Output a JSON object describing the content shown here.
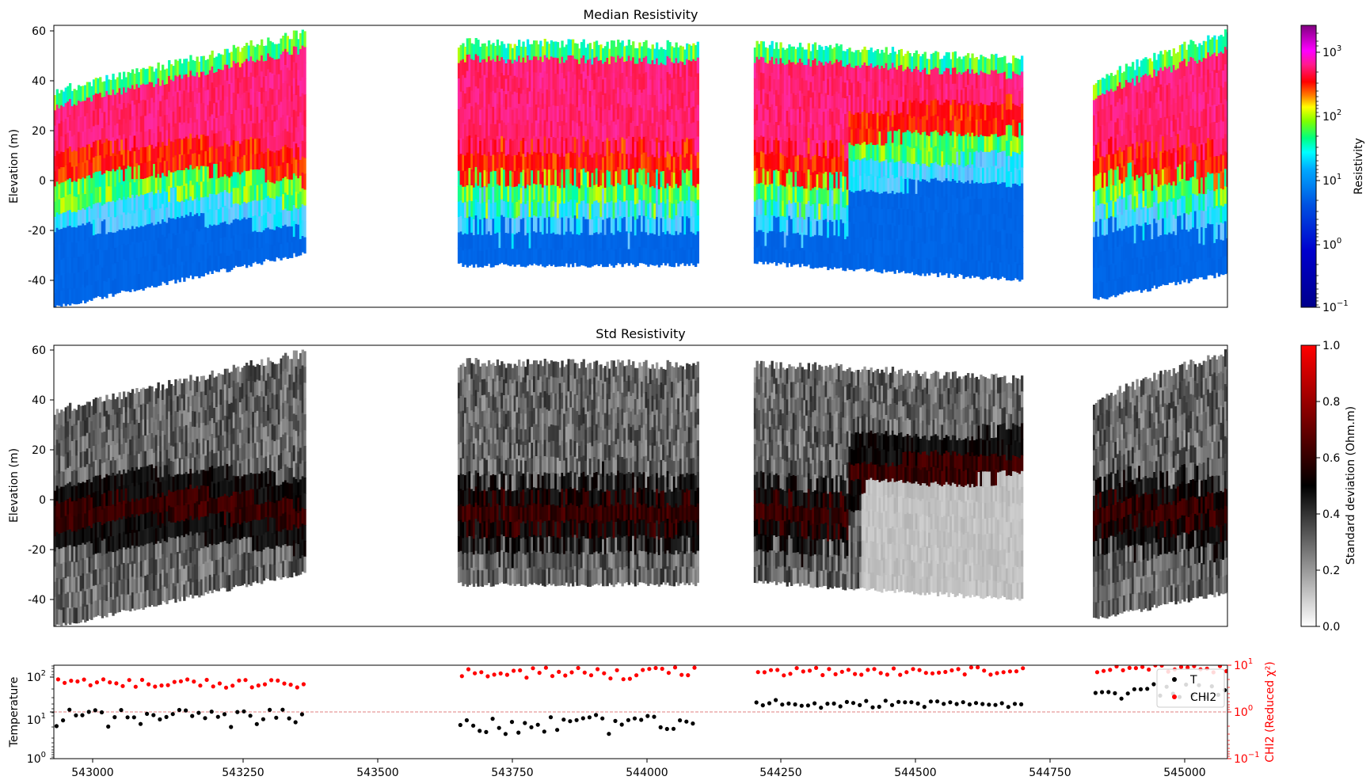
{
  "chart_data": [
    {
      "type": "heatmap",
      "title": "Median Resistivity",
      "ylabel": "Elevation (m)",
      "xlim": [
        542900,
        545080
      ],
      "ylim": [
        -51,
        62
      ],
      "yticks": [
        "60",
        "40",
        "20",
        "0",
        "-20",
        "-40"
      ],
      "colorbar": {
        "label": "Resistivity",
        "scale": "log",
        "range": [
          0.1,
          2500
        ],
        "ticks": [
          {
            "base": "10",
            "exp": "3"
          },
          {
            "base": "10",
            "exp": "2"
          },
          {
            "base": "10",
            "exp": "1"
          },
          {
            "base": "10",
            "exp": "0"
          },
          {
            "base": "10",
            "exp": "−1"
          }
        ]
      },
      "segments": [
        {
          "x_start": 542900,
          "x_end": 543365,
          "top_start": 36,
          "top_end": 59,
          "bottom_start": -51,
          "bottom_end": -29
        },
        {
          "x_start": 543650,
          "x_end": 544098,
          "top_start": 55,
          "top_end": 54,
          "bottom_start": -34,
          "bottom_end": -34
        },
        {
          "x_start": 544200,
          "x_end": 544698,
          "top_start": 55,
          "top_end": 48,
          "bottom_start": -33,
          "bottom_end": -40
        },
        {
          "x_start": 544830,
          "x_end": 545080,
          "top_start": 40,
          "top_end": 60,
          "bottom_start": -48,
          "bottom_end": -37
        }
      ]
    },
    {
      "type": "heatmap",
      "title": "Std Resistivity",
      "ylabel": "Elevation (m)",
      "xlim": [
        542900,
        545080
      ],
      "ylim": [
        -51,
        62
      ],
      "yticks": [
        "60",
        "40",
        "20",
        "0",
        "-20",
        "-40"
      ],
      "colorbar": {
        "label": "Standard deviation (Ohm.m)",
        "range": [
          0.0,
          1.0
        ],
        "ticks": [
          "1.0",
          "0.8",
          "0.6",
          "0.4",
          "0.2",
          "0.0"
        ]
      }
    },
    {
      "type": "scatter",
      "ylabel": "Temperature",
      "y2label": "CHI2 (Reduced χ²)",
      "xlim": [
        542900,
        545080
      ],
      "xticks": [
        "543000",
        "543250",
        "543500",
        "543750",
        "544000",
        "544250",
        "544500",
        "544750",
        "545000"
      ],
      "yticks": [
        {
          "base": "10",
          "exp": "2"
        },
        {
          "base": "10",
          "exp": "1"
        },
        {
          "base": "10",
          "exp": "0"
        }
      ],
      "y2ticks": [
        {
          "base": "10",
          "exp": "1"
        },
        {
          "base": "10",
          "exp": "0"
        },
        {
          "base": "10",
          "exp": "−1"
        }
      ],
      "reference_line_chi2": 1.0,
      "legend": {
        "position": "top-right",
        "entries": [
          "T",
          "CHI2"
        ]
      },
      "series": [
        {
          "name": "T",
          "color": "#000000"
        },
        {
          "name": "CHI2",
          "color": "#ff0000"
        }
      ]
    }
  ]
}
